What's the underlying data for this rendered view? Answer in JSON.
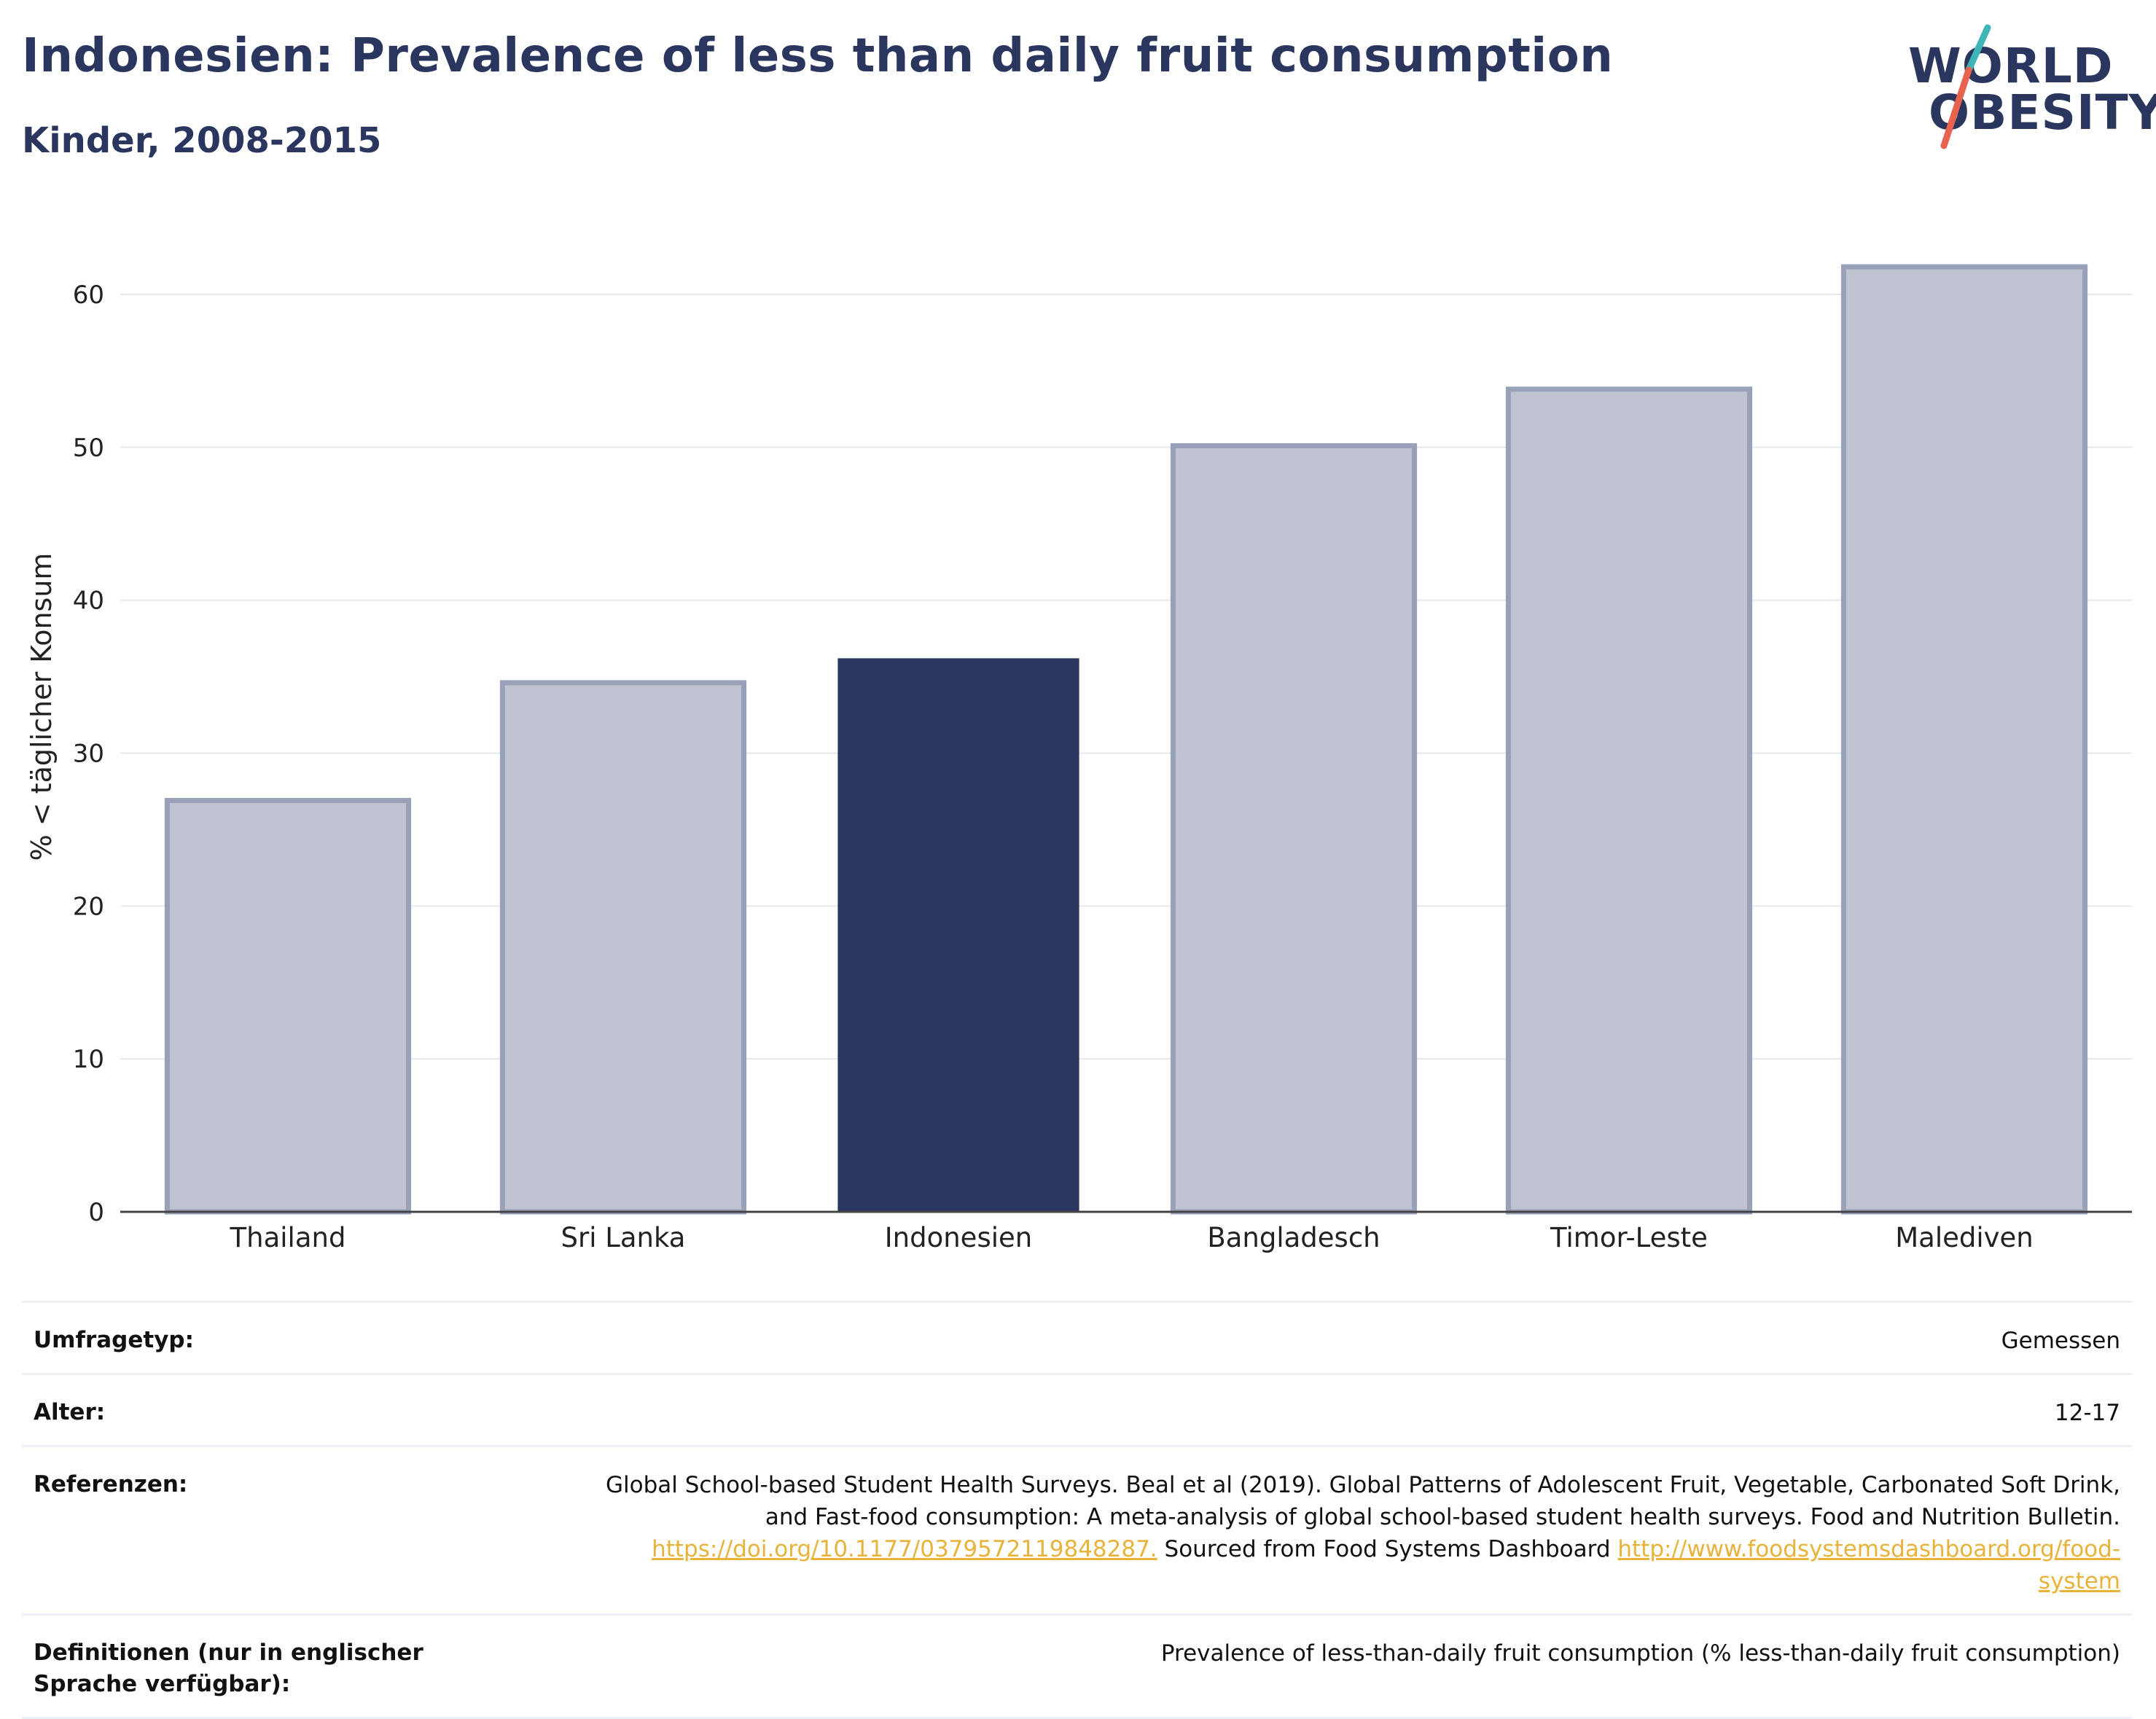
{
  "header": {
    "title": "Indonesien: Prevalence of less than daily fruit consumption",
    "subtitle": "Kinder, 2008-2015"
  },
  "logo": {
    "line1": "WORLD",
    "line2": "OBESITY",
    "colors": {
      "text": "#2b365f",
      "slash_top": "#3fb4b6",
      "slash_bottom": "#e8634f"
    }
  },
  "chart_data": {
    "type": "bar",
    "title": "",
    "xlabel": "",
    "ylabel": "% < täglicher Konsum",
    "categories": [
      "Thailand",
      "Sri Lanka",
      "Indonesien",
      "Bangladesch",
      "Timor-Leste",
      "Malediven"
    ],
    "values": [
      26.9,
      34.6,
      36.2,
      50.1,
      53.8,
      61.8
    ],
    "highlight": "Indonesien",
    "ylim": [
      0,
      64
    ],
    "yticks": [
      0,
      10,
      20,
      30,
      40,
      50,
      60
    ],
    "grid": true,
    "colors": {
      "highlight": "#2b365f",
      "other_fill": "#bfc3cf",
      "other_stroke": "#99a1b8"
    }
  },
  "info": {
    "rows": [
      {
        "key": "Umfragetyp:",
        "value": "Gemessen"
      },
      {
        "key": "Alter:",
        "value": "12-17"
      },
      {
        "key": "Referenzen:",
        "value_line1": "Global School-based Student Health Surveys. Beal et al (2019). Global Patterns of Adolescent Fruit, Vegetable, Carbonated Soft Drink,",
        "value_line2": "and Fast-food consumption: A meta-analysis of global school-based student health surveys. Food and Nutrition Bulletin.",
        "link1": "https://doi.org/10.1177/0379572119848287.",
        "mid_text": " Sourced from Food Systems Dashboard ",
        "link2a": "http://www.foodsystemsdashboard.org/food-",
        "link2b": "system"
      },
      {
        "key": "Definitionen (nur in englischer Sprache verfügbar):",
        "value": "Prevalence of less-than-daily fruit consumption (% less-than-daily fruit consumption)"
      }
    ]
  }
}
